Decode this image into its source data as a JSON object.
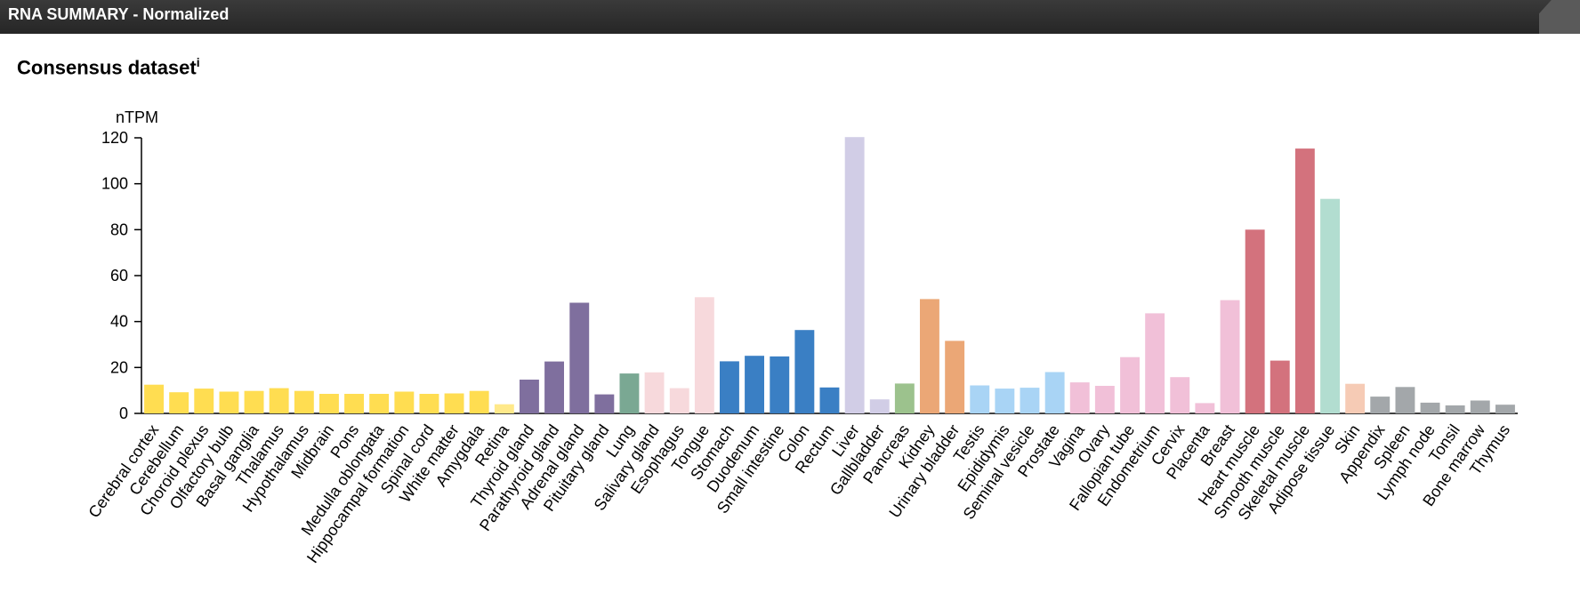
{
  "header": {
    "title": "RNA SUMMARY - Normalized"
  },
  "section": {
    "title": "Consensus dataset",
    "info_marker": "i"
  },
  "chart_data": {
    "type": "bar",
    "ylabel": "nTPM",
    "ylim": [
      0,
      120
    ],
    "yticks": [
      0,
      20,
      40,
      60,
      80,
      100,
      120
    ],
    "categories": [
      "Cerebral cortex",
      "Cerebellum",
      "Choroid plexus",
      "Olfactory bulb",
      "Basal ganglia",
      "Thalamus",
      "Hypothalamus",
      "Midbrain",
      "Pons",
      "Medulla oblongata",
      "Hippocampal formation",
      "Spinal cord",
      "White matter",
      "Amygdala",
      "Retina",
      "Thyroid gland",
      "Parathyroid gland",
      "Adrenal gland",
      "Pituitary gland",
      "Lung",
      "Salivary gland",
      "Esophagus",
      "Tongue",
      "Stomach",
      "Duodenum",
      "Small intestine",
      "Colon",
      "Rectum",
      "Liver",
      "Gallbladder",
      "Pancreas",
      "Kidney",
      "Urinary bladder",
      "Testis",
      "Epididymis",
      "Seminal vesicle",
      "Prostate",
      "Vagina",
      "Ovary",
      "Fallopian tube",
      "Endometrium",
      "Cervix",
      "Placenta",
      "Breast",
      "Heart muscle",
      "Smooth muscle",
      "Skeletal muscle",
      "Adipose tissue",
      "Skin",
      "Appendix",
      "Spleen",
      "Lymph node",
      "Tonsil",
      "Bone marrow",
      "Thymus"
    ],
    "values": [
      12.5,
      9.2,
      10.8,
      9.5,
      9.8,
      11.0,
      9.8,
      8.5,
      8.5,
      8.5,
      9.5,
      8.5,
      8.7,
      9.8,
      4.0,
      14.7,
      22.6,
      48.2,
      8.3,
      17.4,
      17.9,
      11.0,
      50.6,
      22.7,
      25.1,
      24.8,
      36.3,
      11.3,
      120.3,
      6.1,
      13.0,
      49.8,
      31.6,
      12.2,
      10.8,
      11.2,
      18.0,
      13.5,
      12.0,
      24.5,
      43.6,
      15.8,
      4.5,
      49.3,
      80.0,
      23.0,
      115.3,
      93.4,
      12.9,
      7.3,
      11.5,
      4.7,
      3.5,
      5.6,
      3.8
    ],
    "colors": [
      "#ffdd51",
      "#ffdd51",
      "#ffdd51",
      "#ffdd51",
      "#ffdd51",
      "#ffdd51",
      "#ffdd51",
      "#ffdd51",
      "#ffdd51",
      "#ffdd51",
      "#ffdd51",
      "#ffdd51",
      "#ffdd51",
      "#ffdd51",
      "#ffe98a",
      "#7f6f9e",
      "#7f6f9e",
      "#7f6f9e",
      "#7f6f9e",
      "#7aa893",
      "#f7d9dc",
      "#f7d9dc",
      "#f7d9dc",
      "#3a7fc4",
      "#3a7fc4",
      "#3a7fc4",
      "#3a7fc4",
      "#3a7fc4",
      "#d1cde6",
      "#d1cde6",
      "#9cc28d",
      "#eba776",
      "#eba776",
      "#a9d4f5",
      "#a9d4f5",
      "#a9d4f5",
      "#a9d4f5",
      "#f1c0d8",
      "#f1c0d8",
      "#f1c0d8",
      "#f1c0d8",
      "#f1c0d8",
      "#f1c0d8",
      "#f1c0d8",
      "#d3727d",
      "#d3727d",
      "#d3727d",
      "#b2ddd0",
      "#f6cbb5",
      "#a3a7aa",
      "#a3a7aa",
      "#a3a7aa",
      "#a3a7aa",
      "#a3a7aa",
      "#a3a7aa"
    ],
    "grid": false,
    "legend": "none"
  }
}
